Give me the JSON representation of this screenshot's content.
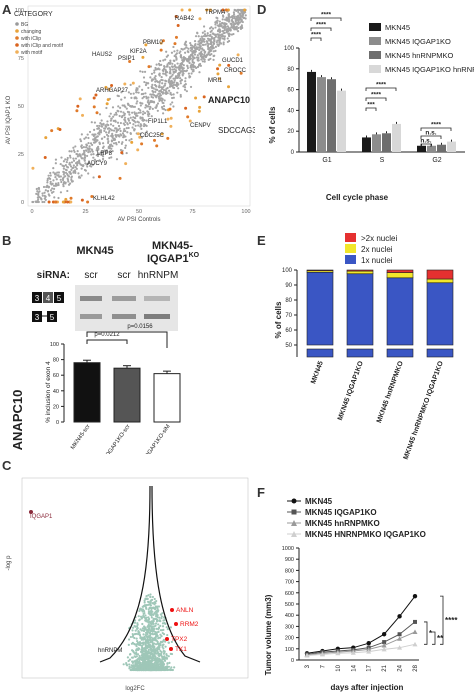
{
  "figure": {
    "panels": {
      "A": {
        "letter": "A",
        "legend_title": "CATEGORY",
        "legend_items": [
          "BG",
          "changing",
          "with iClip",
          "with iClip and motif",
          "with motif"
        ],
        "legend_colors": [
          "#9a9a9a",
          "#e8a33a",
          "#e07a2a",
          "#d9641f",
          "#f0b05a"
        ],
        "ylabel": "AV PSI IQAP1 KO",
        "xlabel": "AV PSI Controls",
        "xticks": [
          "0",
          "25",
          "50",
          "75",
          "100"
        ],
        "yticks": [
          "0",
          "25",
          "50",
          "75",
          "100"
        ],
        "gene_labels": [
          "TRPM4",
          "RAB42",
          "PBM10",
          "KIF2A",
          "PSIP1",
          "HAUS2",
          "GUCD1",
          "CROCC",
          "MRI1",
          "ARHGAP27",
          "ANAPC10",
          "FIP1L1",
          "CENPV",
          "SDCCAG3",
          "CDC25C",
          "LRP8",
          "ADCY9",
          "KLHL42"
        ]
      },
      "B": {
        "letter": "B",
        "col1": "MKN45",
        "col2_main": "MKN45-",
        "col2_sub": "IQGAP1",
        "col2_sup": "KO",
        "sirna_label": "siRNA:",
        "sirna_values": [
          "scr",
          "scr",
          "hnRNPM"
        ],
        "exon_top": [
          "3",
          "4",
          "5"
        ],
        "exon_bottom": [
          "3",
          "5"
        ],
        "gene_vertical": "ANAPC10",
        "pvalues": [
          "p=0.0212",
          "p=0.0156"
        ],
        "ylabel": "% inclusion of exon 4",
        "yticks": [
          "0",
          "20",
          "40",
          "60",
          "80",
          "100"
        ],
        "bar_labels": [
          "MKN45-scr",
          "MKN45 IQGAP1KO-scr",
          "MKN45 IQGAP1KO-siM"
        ]
      },
      "C": {
        "letter": "C",
        "ylabel": "-log p",
        "xlabel": "log2FC",
        "left_gene": "IQGAP1",
        "center_gene": "hnRNPM",
        "red_genes": [
          "ANLN",
          "RRM2",
          "TPX2",
          "TK1"
        ]
      },
      "D": {
        "letter": "D",
        "ylabel": "% of cells",
        "xlabel": "Cell cycle phase",
        "yticks": [
          "0",
          "20",
          "40",
          "60",
          "80",
          "100"
        ],
        "legend": [
          {
            "label": "MKN45",
            "color": "#1a1a1a"
          },
          {
            "label": "MKN45 IQGAP1KO",
            "color": "#8c8c8c"
          },
          {
            "label": "MKN45 hnRNPMKO",
            "color": "#6e6e6e"
          },
          {
            "label": "MKN45 IQGAP1KO hnRNPMKO",
            "color": "#d8d8d8"
          }
        ],
        "sig_labels": [
          "****",
          "****",
          "****",
          "***",
          "****",
          "****",
          "****",
          "n.s.",
          "n.s."
        ]
      },
      "E": {
        "letter": "E",
        "ylabel": "% of cells",
        "yticks": [
          "50",
          "60",
          "70",
          "80",
          "90",
          "100"
        ],
        "legend": [
          {
            "label": ">2x nuclei",
            "color": "#e53030"
          },
          {
            "label": "2x nuclei",
            "color": "#f2e62a"
          },
          {
            "label": "1x nuclei",
            "color": "#3a56c4"
          }
        ],
        "xlabels": [
          "MKN45",
          "MKN45 IQGAP1KO",
          "MKN45 hnRNPMKO",
          "MKN45 hnRNPMKO IQGAP1KO"
        ]
      },
      "F": {
        "letter": "F",
        "ylabel": "Tumor volume (mm3)",
        "xlabel": "days after injection",
        "xticks": [
          "3",
          "7",
          "10",
          "14",
          "17",
          "21",
          "24",
          "28"
        ],
        "yticks": [
          "0",
          "100",
          "200",
          "300",
          "400",
          "500",
          "600",
          "700",
          "800",
          "900",
          "1000"
        ],
        "legend": [
          "MKN45",
          "MKN45 IQGAP1KO",
          "MKN45 hnRNPMKO",
          "MKN45 HNRNPMKO IQGAP1KO"
        ],
        "sig": [
          "*",
          "**",
          "****"
        ]
      }
    }
  },
  "chart_data": [
    {
      "type": "scatter",
      "xlabel": "AV PSI Controls",
      "ylabel": "AV PSI IQAP1 KO",
      "xlim": [
        0,
        100
      ],
      "ylim": [
        0,
        100
      ],
      "series": [
        {
          "name": "BG",
          "trend": "y≈x with scatter"
        }
      ]
    },
    {
      "type": "bar",
      "categories": [
        "MKN45-scr",
        "MKN45 IQGAP1KO-scr",
        "MKN45 IQGAP1KO-siM"
      ],
      "values": [
        76,
        69,
        62
      ],
      "ylabel": "% inclusion of exon 4",
      "ylim": [
        0,
        100
      ]
    },
    {
      "type": "scatter",
      "xlabel": "log2FC",
      "ylabel": "-log p",
      "series": [
        {
          "name": "",
          "points": [
            [
              -3.3,
              2.1
            ],
            [
              1.1,
              0.65
            ],
            [
              1.2,
              0.6
            ],
            [
              1.0,
              0.45
            ],
            [
              0.9,
              0.4
            ]
          ]
        }
      ]
    },
    {
      "type": "bar",
      "categories": [
        "G1",
        "S",
        "G2"
      ],
      "ylabel": "% of cells",
      "ylim": [
        0,
        100
      ],
      "series": [
        {
          "name": "MKN45",
          "values": [
            77,
            14,
            6
          ]
        },
        {
          "name": "MKN45 IQGAP1KO",
          "values": [
            72,
            17,
            6
          ]
        },
        {
          "name": "MKN45 hnRNPMKO",
          "values": [
            70,
            18,
            7
          ]
        },
        {
          "name": "MKN45 IQGAP1KO hnRNPMKO",
          "values": [
            59,
            27,
            10
          ]
        }
      ]
    },
    {
      "type": "bar",
      "categories": [
        "MKN45",
        "MKN45 IQGAP1KO",
        "MKN45 hnRNPMKO",
        "MKN45 hnRNPMKO IQGAP1KO"
      ],
      "ylabel": "% of cells",
      "ylim": [
        50,
        100
      ],
      "series": [
        {
          "name": "1x nuclei",
          "values": [
            98.5,
            97.5,
            94.8,
            91.5
          ]
        },
        {
          "name": "2x nuclei",
          "values": [
            1.0,
            1.8,
            3.5,
            2.5
          ]
        },
        {
          "name": ">2x nuclei",
          "values": [
            0.5,
            0.7,
            1.7,
            6.0
          ]
        }
      ]
    },
    {
      "type": "line",
      "x": [
        3,
        7,
        10,
        14,
        17,
        21,
        24,
        28
      ],
      "xlabel": "days after injection",
      "ylabel": "Tumor volume (mm3)",
      "ylim": [
        0,
        1000
      ],
      "series": [
        {
          "name": "MKN45",
          "values": [
            60,
            80,
            100,
            110,
            150,
            230,
            390,
            570
          ]
        },
        {
          "name": "MKN45 IQGAP1KO",
          "values": [
            50,
            70,
            80,
            90,
            110,
            160,
            230,
            340
          ]
        },
        {
          "name": "MKN45 hnRNPMKO",
          "values": [
            45,
            60,
            70,
            80,
            95,
            130,
            190,
            250
          ]
        },
        {
          "name": "MKN45 HNRNPMKO IQGAP1KO",
          "values": [
            40,
            50,
            60,
            65,
            75,
            95,
            110,
            140
          ]
        }
      ]
    }
  ]
}
